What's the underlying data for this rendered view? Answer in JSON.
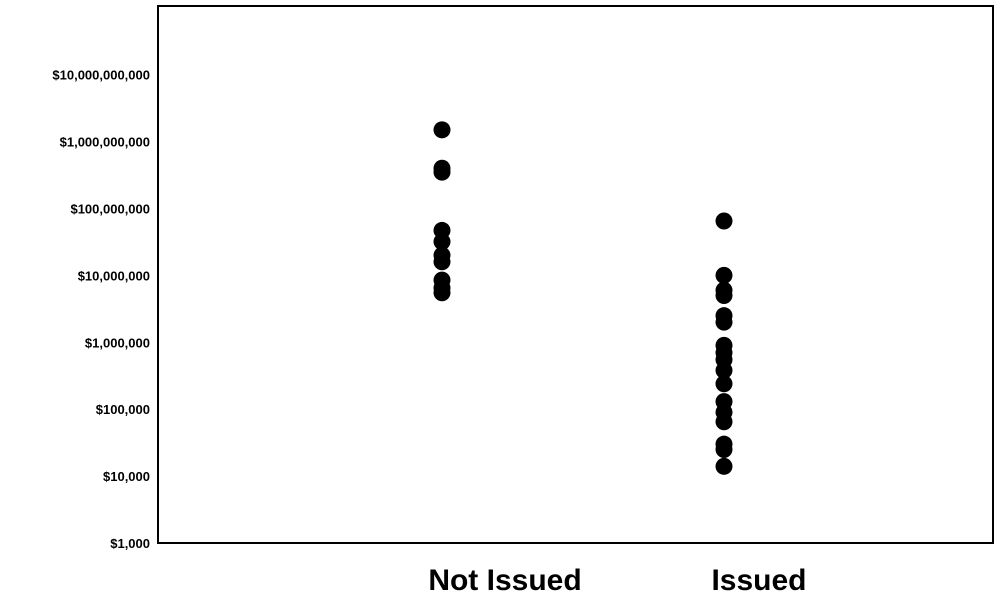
{
  "chart_data": {
    "type": "scatter",
    "title": "",
    "xlabel": "",
    "ylabel": "",
    "y_scale": "log",
    "ylim": [
      1000,
      100000000000
    ],
    "grid": false,
    "categories": [
      "Not Issued",
      "Issued"
    ],
    "y_ticks": [
      {
        "value": 1000,
        "label": "$1,000"
      },
      {
        "value": 10000,
        "label": "$10,000"
      },
      {
        "value": 100000,
        "label": "$100,000"
      },
      {
        "value": 1000000,
        "label": "$1,000,000"
      },
      {
        "value": 10000000,
        "label": "$10,000,000"
      },
      {
        "value": 100000000,
        "label": "$100,000,000"
      },
      {
        "value": 1000000000,
        "label": "$1,000,000,000"
      },
      {
        "value": 10000000000,
        "label": "$10,000,000,000"
      }
    ],
    "points": [
      {
        "category": "Not Issued",
        "y": 1500000000
      },
      {
        "category": "Not Issued",
        "y": 400000000
      },
      {
        "category": "Not Issued",
        "y": 350000000
      },
      {
        "category": "Not Issued",
        "y": 47000000
      },
      {
        "category": "Not Issued",
        "y": 32000000
      },
      {
        "category": "Not Issued",
        "y": 20000000
      },
      {
        "category": "Not Issued",
        "y": 16000000
      },
      {
        "category": "Not Issued",
        "y": 8500000
      },
      {
        "category": "Not Issued",
        "y": 6500000
      },
      {
        "category": "Not Issued",
        "y": 5500000
      },
      {
        "category": "Issued",
        "y": 65000000
      },
      {
        "category": "Issued",
        "y": 10000000
      },
      {
        "category": "Issued",
        "y": 6000000
      },
      {
        "category": "Issued",
        "y": 5000000
      },
      {
        "category": "Issued",
        "y": 2500000
      },
      {
        "category": "Issued",
        "y": 2000000
      },
      {
        "category": "Issued",
        "y": 900000
      },
      {
        "category": "Issued",
        "y": 700000
      },
      {
        "category": "Issued",
        "y": 550000
      },
      {
        "category": "Issued",
        "y": 380000
      },
      {
        "category": "Issued",
        "y": 240000
      },
      {
        "category": "Issued",
        "y": 130000
      },
      {
        "category": "Issued",
        "y": 90000
      },
      {
        "category": "Issued",
        "y": 65000
      },
      {
        "category": "Issued",
        "y": 30000
      },
      {
        "category": "Issued",
        "y": 25000
      },
      {
        "category": "Issued",
        "y": 14000
      }
    ],
    "marker_color": "#000000"
  }
}
